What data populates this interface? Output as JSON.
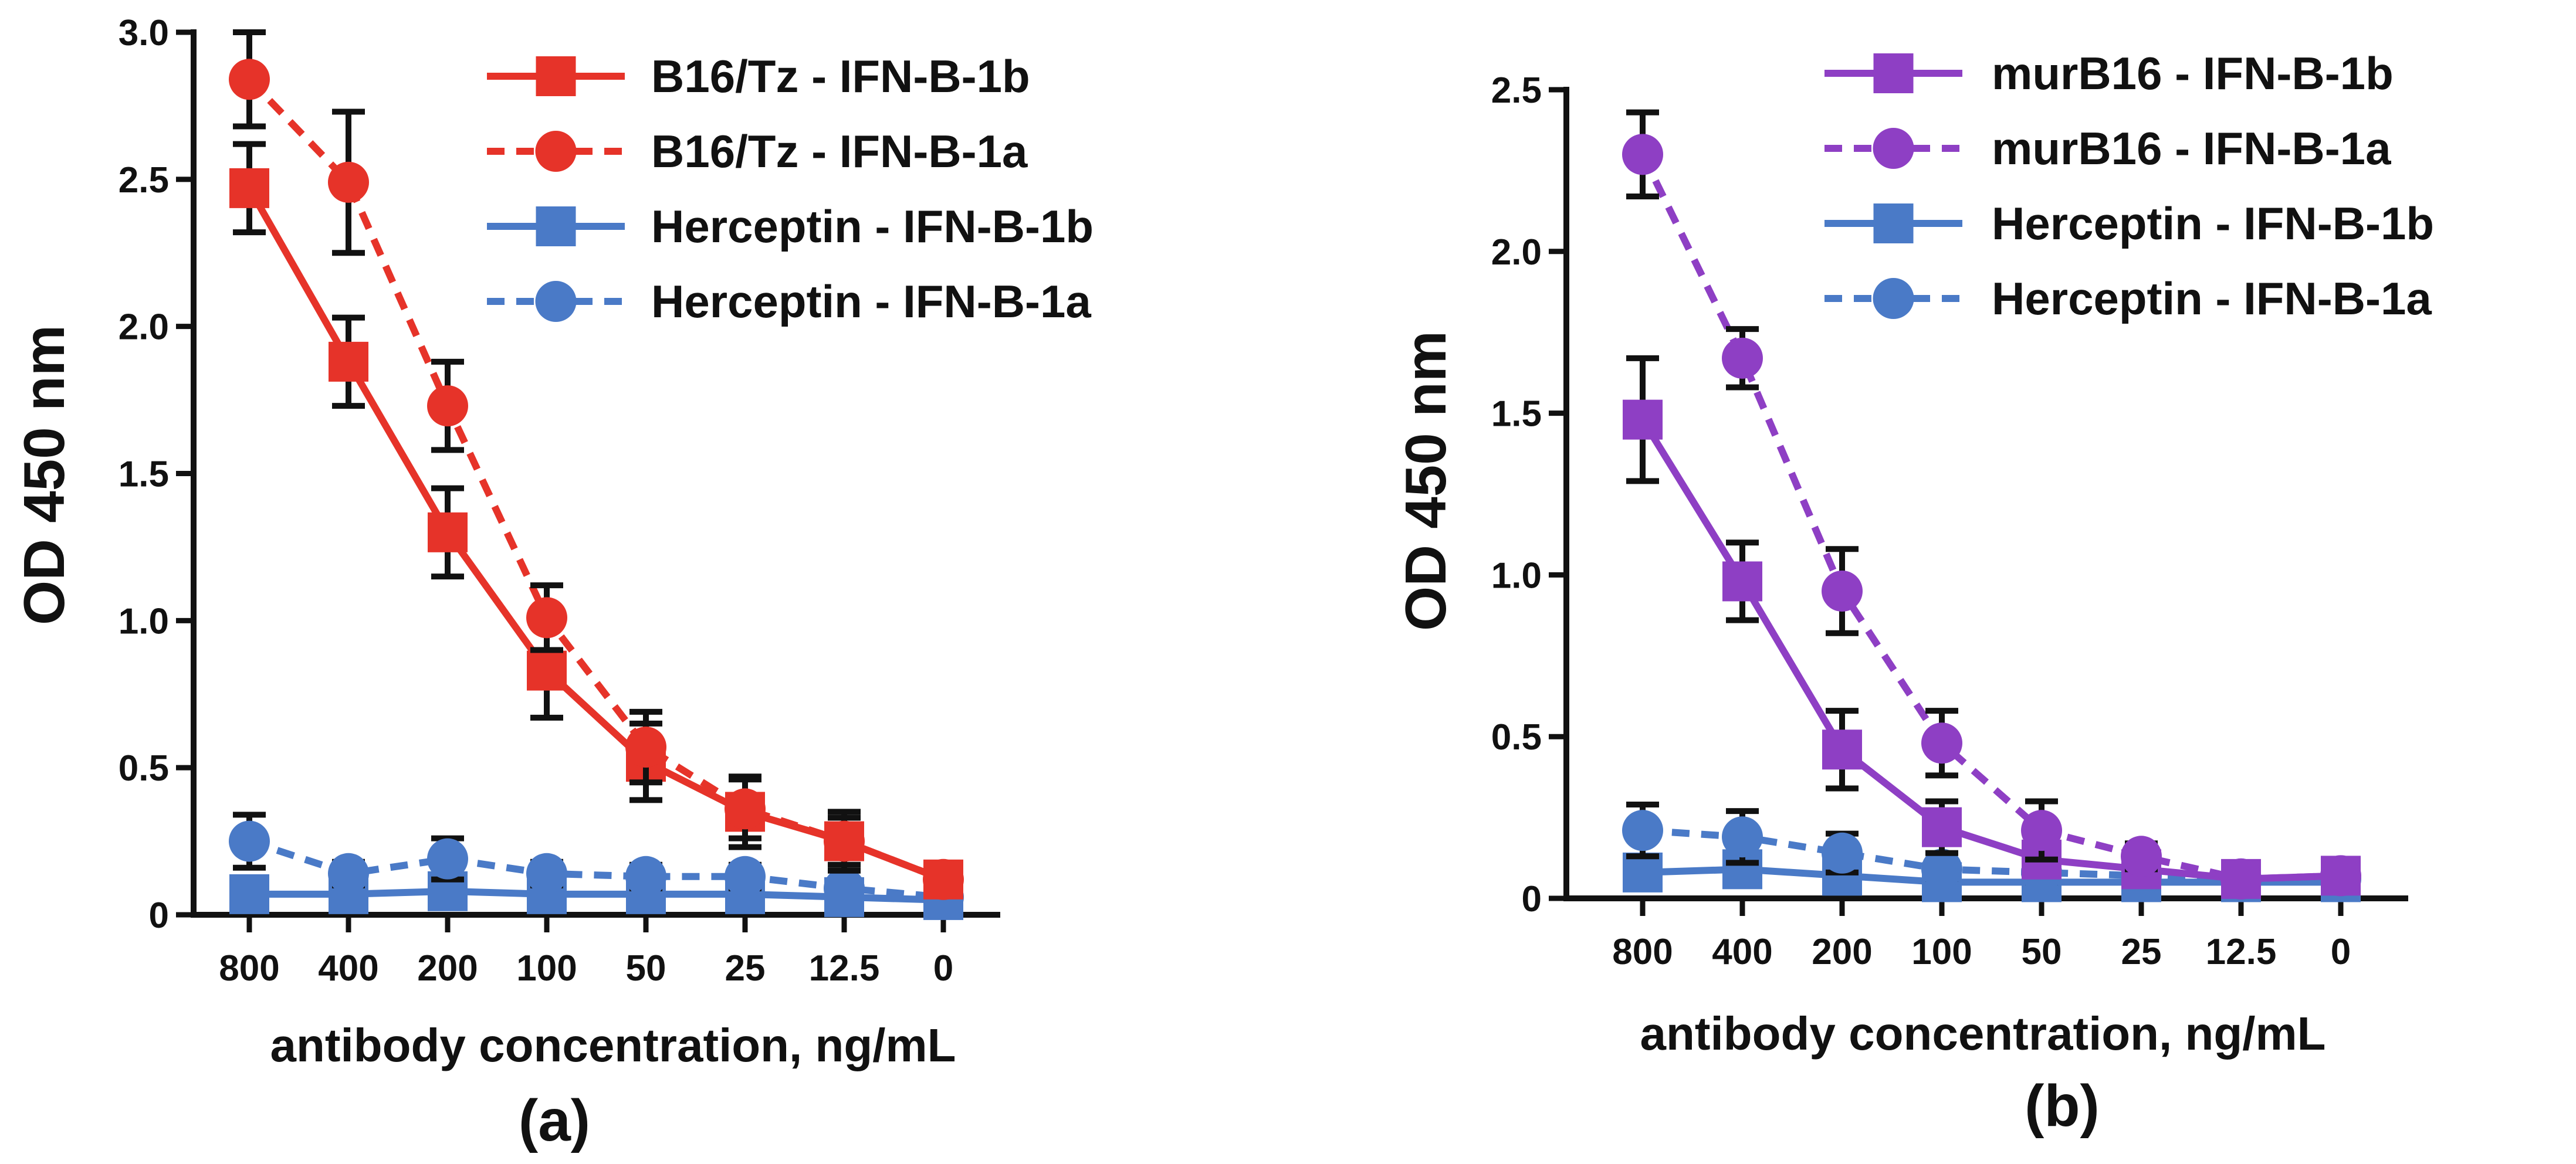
{
  "chart_data": [
    {
      "type": "line",
      "panel_label": "(a)",
      "xlabel": "antibody concentration, ng/mL",
      "ylabel": "OD 450 nm",
      "categories": [
        "800",
        "400",
        "200",
        "100",
        "50",
        "25",
        "12.5",
        "0"
      ],
      "ylim": [
        0,
        3.0
      ],
      "yticks": [
        "0",
        "0.5",
        "1.0",
        "1.5",
        "2.0",
        "2.5",
        "3.0"
      ],
      "legend_position": "top-right",
      "series": [
        {
          "name": "B16/Tz - IFN-B-1b",
          "color": "#e63329",
          "marker": "square",
          "dash": "solid",
          "values": [
            2.47,
            1.88,
            1.3,
            0.83,
            0.52,
            0.35,
            0.25,
            0.12
          ],
          "errors": [
            0.15,
            0.15,
            0.15,
            0.16,
            0.13,
            0.12,
            0.1,
            0.02
          ]
        },
        {
          "name": "B16/Tz - IFN-B-1a",
          "color": "#e63329",
          "marker": "circle",
          "dash": "dashed",
          "values": [
            2.84,
            2.49,
            1.73,
            1.01,
            0.57,
            0.36,
            0.25,
            0.12
          ],
          "errors": [
            0.16,
            0.24,
            0.15,
            0.11,
            0.12,
            0.1,
            0.08,
            0.02
          ]
        },
        {
          "name": "Herceptin - IFN-B-1b",
          "color": "#4a7ac7",
          "marker": "square",
          "dash": "solid",
          "values": [
            0.07,
            0.07,
            0.08,
            0.07,
            0.07,
            0.07,
            0.06,
            0.05
          ],
          "errors": [
            0.05,
            0.04,
            0.05,
            0.04,
            0.04,
            0.04,
            0.03,
            0.02
          ]
        },
        {
          "name": "Herceptin - IFN-B-1a",
          "color": "#4a7ac7",
          "marker": "circle",
          "dash": "dashed",
          "values": [
            0.25,
            0.14,
            0.19,
            0.14,
            0.13,
            0.13,
            0.09,
            0.06
          ],
          "errors": [
            0.09,
            0.04,
            0.07,
            0.04,
            0.04,
            0.04,
            0.03,
            0.02
          ]
        }
      ]
    },
    {
      "type": "line",
      "panel_label": "(b)",
      "xlabel": "antibody concentration, ng/mL",
      "ylabel": "OD 450 nm",
      "categories": [
        "800",
        "400",
        "200",
        "100",
        "50",
        "25",
        "12.5",
        "0"
      ],
      "ylim": [
        0,
        2.5
      ],
      "yticks": [
        "0",
        "0.5",
        "1.0",
        "1.5",
        "2.0",
        "2.5"
      ],
      "legend_position": "top-right",
      "series": [
        {
          "name": "murB16 - IFN-B-1b",
          "color": "#8e3fc4",
          "marker": "square",
          "dash": "solid",
          "values": [
            1.48,
            0.98,
            0.46,
            0.22,
            0.12,
            0.09,
            0.06,
            0.07
          ],
          "errors": [
            0.19,
            0.12,
            0.12,
            0.08,
            0.04,
            0.03,
            0.02,
            0.02
          ]
        },
        {
          "name": "murB16 - IFN-B-1a",
          "color": "#8e3fc4",
          "marker": "circle",
          "dash": "dashed",
          "values": [
            2.3,
            1.67,
            0.95,
            0.48,
            0.21,
            0.13,
            0.06,
            0.07
          ],
          "errors": [
            0.13,
            0.09,
            0.13,
            0.1,
            0.09,
            0.04,
            0.02,
            0.02
          ]
        },
        {
          "name": "Herceptin - IFN-B-1b",
          "color": "#4a7ac7",
          "marker": "square",
          "dash": "solid",
          "values": [
            0.08,
            0.09,
            0.07,
            0.05,
            0.05,
            0.05,
            0.05,
            0.05
          ],
          "errors": [
            0.03,
            0.03,
            0.03,
            0.02,
            0.02,
            0.02,
            0.02,
            0.02
          ]
        },
        {
          "name": "Herceptin - IFN-B-1a",
          "color": "#4a7ac7",
          "marker": "circle",
          "dash": "dashed",
          "values": [
            0.21,
            0.19,
            0.14,
            0.09,
            0.08,
            0.07,
            0.06,
            0.06
          ],
          "errors": [
            0.08,
            0.08,
            0.06,
            0.03,
            0.03,
            0.02,
            0.02,
            0.02
          ]
        }
      ]
    }
  ]
}
